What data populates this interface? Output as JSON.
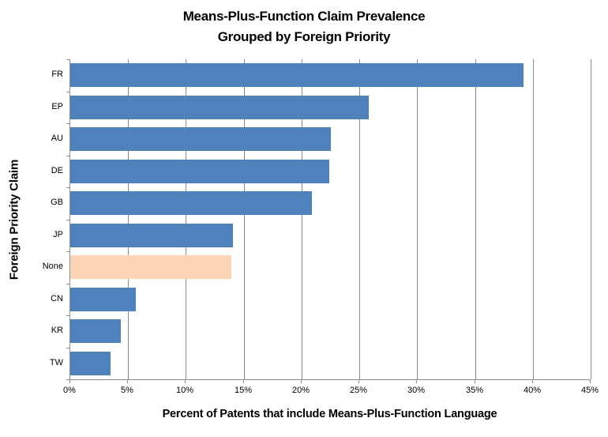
{
  "chart_data": {
    "type": "bar",
    "orientation": "horizontal",
    "title_lines": [
      "Means-Plus-Function Claim Prevalence",
      "Grouped by Foreign Priority"
    ],
    "xlabel": "Percent of Patents that include Means-Plus-Function Language",
    "ylabel": "Foreign Priority Claim",
    "categories": [
      "FR",
      "EP",
      "AU",
      "DE",
      "GB",
      "JP",
      "None",
      "CN",
      "KR",
      "TW"
    ],
    "values": [
      39.2,
      25.8,
      22.5,
      22.4,
      20.9,
      14.1,
      13.9,
      5.7,
      4.4,
      3.5
    ],
    "highlight_category": "None",
    "xlim": [
      0,
      45
    ],
    "x_tick_step": 5,
    "x_tick_labels": [
      "0%",
      "5%",
      "10%",
      "15%",
      "20%",
      "25%",
      "30%",
      "35%",
      "40%",
      "45%"
    ],
    "legend": "none",
    "grid": "vertical-major",
    "colors": {
      "bar": "#4F81BD",
      "highlight_bar": "#FBD5B5",
      "gridline": "#8C8C8C",
      "axis_line": "#8C8C8C",
      "text": "#000000",
      "background": "#FFFFFF"
    }
  }
}
